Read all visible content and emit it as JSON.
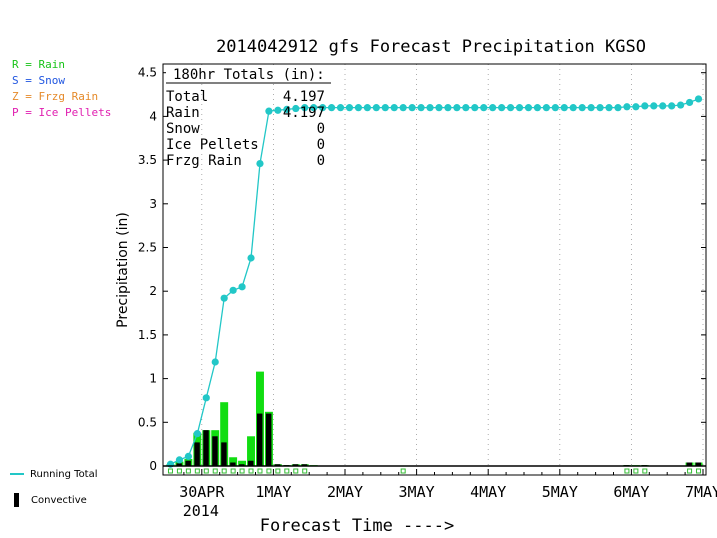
{
  "key": [
    {
      "text": "R = Rain",
      "color": "#18c418"
    },
    {
      "text": "S = Snow",
      "color": "#1f55e0"
    },
    {
      "text": "Z = Frzg Rain",
      "color": "#e58a2a"
    },
    {
      "text": "P = Ice Pellets",
      "color": "#e01fb0"
    }
  ],
  "legend": {
    "running_total": "Running Total",
    "convective": "Convective"
  },
  "totals": {
    "header": "180hr Totals (in):",
    "rows": [
      {
        "label": "Total",
        "value": "4.197"
      },
      {
        "label": "Rain",
        "value": "4.197"
      },
      {
        "label": "Snow",
        "value": "0"
      },
      {
        "label": "Ice Pellets",
        "value": "0"
      },
      {
        "label": "Frzg Rain",
        "value": "0"
      }
    ]
  },
  "colors": {
    "running_total": "#22c7c7",
    "rain_bar": "#11dd11",
    "convective_bar": "#000000",
    "marker": "#33bb33"
  },
  "chart_data": {
    "type": "bar",
    "title": "2014042912 gfs Forecast Precipitation KGSO",
    "xlabel": "Forecast Time ---->",
    "ylabel": "Precipitation (in)",
    "ylim": [
      0,
      4.5
    ],
    "yticks": [
      "0",
      "0.5",
      "1",
      "1.5",
      "2",
      "2.5",
      "3",
      "3.5",
      "4",
      "4.5"
    ],
    "x_unit": "forecast hour",
    "xlim": [
      0,
      180
    ],
    "xticks": [
      {
        "hour": 12,
        "label": "30APR",
        "sub": "2014"
      },
      {
        "hour": 36,
        "label": "1MAY",
        "sub": ""
      },
      {
        "hour": 60,
        "label": "2MAY",
        "sub": ""
      },
      {
        "hour": 84,
        "label": "3MAY",
        "sub": ""
      },
      {
        "hour": 108,
        "label": "4MAY",
        "sub": ""
      },
      {
        "hour": 132,
        "label": "5MAY",
        "sub": ""
      },
      {
        "hour": 156,
        "label": "6MAY",
        "sub": ""
      },
      {
        "hour": 180,
        "label": "7MAY",
        "sub": ""
      }
    ],
    "bar_width_hours": 3,
    "series": [
      {
        "name": "Rain",
        "hours": [
          3,
          6,
          9,
          12,
          15,
          18,
          21,
          24,
          27,
          30,
          33,
          36,
          39,
          42,
          45,
          48,
          51,
          156,
          159,
          162,
          177,
          180
        ],
        "values": [
          0.02,
          0.05,
          0.08,
          0.38,
          0.41,
          0.41,
          0.73,
          0.1,
          0.06,
          0.34,
          1.08,
          0.62,
          0.02,
          0.01,
          0.02,
          0.02,
          0.01,
          0.01,
          0.01,
          0.01,
          0.04,
          0.04
        ]
      },
      {
        "name": "Convective",
        "hours": [
          3,
          6,
          9,
          12,
          15,
          18,
          21,
          24,
          27,
          30,
          33,
          36,
          39,
          42,
          45,
          48,
          156,
          162,
          177,
          180
        ],
        "values": [
          0.01,
          0.03,
          0.06,
          0.27,
          0.41,
          0.34,
          0.27,
          0.04,
          0.02,
          0.06,
          0.6,
          0.6,
          0.02,
          0.01,
          0.02,
          0.02,
          0.01,
          0.01,
          0.04,
          0.04
        ]
      },
      {
        "name": "Running Total",
        "hours": [
          3,
          6,
          9,
          12,
          15,
          18,
          21,
          24,
          27,
          30,
          33,
          36,
          39,
          42,
          45,
          48,
          51,
          54,
          57,
          60,
          63,
          66,
          69,
          72,
          75,
          78,
          81,
          84,
          87,
          90,
          93,
          96,
          99,
          102,
          105,
          108,
          111,
          114,
          117,
          120,
          123,
          126,
          129,
          132,
          135,
          138,
          141,
          144,
          147,
          150,
          153,
          156,
          159,
          162,
          165,
          168,
          171,
          174,
          177,
          180
        ],
        "values": [
          0.02,
          0.07,
          0.11,
          0.37,
          0.78,
          1.19,
          1.92,
          2.01,
          2.05,
          2.38,
          3.46,
          4.06,
          4.07,
          4.08,
          4.09,
          4.1,
          4.1,
          4.1,
          4.1,
          4.1,
          4.1,
          4.1,
          4.1,
          4.1,
          4.1,
          4.1,
          4.1,
          4.1,
          4.1,
          4.1,
          4.1,
          4.1,
          4.1,
          4.1,
          4.1,
          4.1,
          4.1,
          4.1,
          4.1,
          4.1,
          4.1,
          4.1,
          4.1,
          4.1,
          4.1,
          4.1,
          4.1,
          4.1,
          4.1,
          4.1,
          4.1,
          4.11,
          4.11,
          4.12,
          4.12,
          4.12,
          4.12,
          4.13,
          4.16,
          4.2
        ]
      }
    ],
    "marker_hours": [
      3,
      6,
      9,
      12,
      15,
      18,
      21,
      24,
      27,
      30,
      33,
      36,
      39,
      42,
      45,
      48,
      81,
      156,
      159,
      162,
      177,
      180
    ],
    "grid": "vertical dotted"
  }
}
